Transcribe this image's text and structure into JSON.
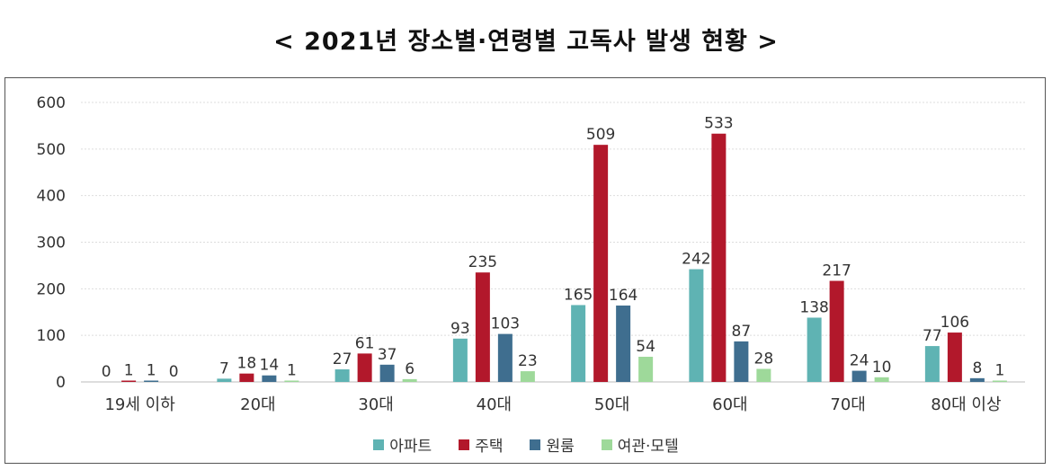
{
  "chart_data": {
    "type": "bar",
    "title": "< 2021년 장소별·연령별 고독사 발생 현황 >",
    "categories": [
      "19세 이하",
      "20대",
      "30대",
      "40대",
      "50대",
      "60대",
      "70대",
      "80대 이상"
    ],
    "series": [
      {
        "name": "아파트",
        "color": "#5fb3b3",
        "values": [
          0,
          7,
          27,
          93,
          165,
          242,
          138,
          77
        ]
      },
      {
        "name": "주택",
        "color": "#b2182b",
        "values": [
          1,
          18,
          61,
          235,
          509,
          533,
          217,
          106
        ]
      },
      {
        "name": "원룸",
        "color": "#3f6e8f",
        "values": [
          1,
          14,
          37,
          103,
          164,
          87,
          24,
          8
        ]
      },
      {
        "name": "여관·모텔",
        "color": "#9ed99a",
        "values": [
          0,
          1,
          6,
          23,
          54,
          28,
          10,
          1
        ]
      }
    ],
    "ylim": [
      0,
      600
    ],
    "yticks": [
      0,
      100,
      200,
      300,
      400,
      500,
      600
    ],
    "grid": true,
    "legend": "bottom"
  }
}
